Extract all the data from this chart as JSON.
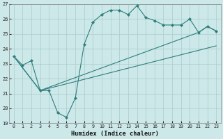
{
  "xlabel": "Humidex (Indice chaleur)",
  "background_color": "#cce8e8",
  "grid_color": "#aacccc",
  "line_color": "#2e7d7d",
  "xlim": [
    -0.5,
    23.5
  ],
  "ylim": [
    19,
    27
  ],
  "xticks": [
    0,
    1,
    2,
    3,
    4,
    5,
    6,
    7,
    8,
    9,
    10,
    11,
    12,
    13,
    14,
    15,
    16,
    17,
    18,
    19,
    20,
    21,
    22,
    23
  ],
  "yticks": [
    19,
    20,
    21,
    22,
    23,
    24,
    25,
    26,
    27
  ],
  "line1_x": [
    0,
    1,
    2,
    3,
    4,
    5,
    6,
    7,
    8,
    9,
    10,
    11,
    12,
    13,
    14,
    15,
    16,
    17,
    18,
    19,
    20,
    21,
    22,
    23
  ],
  "line1_y": [
    23.5,
    22.9,
    23.2,
    21.2,
    21.2,
    19.7,
    19.4,
    20.7,
    24.3,
    25.8,
    26.3,
    26.6,
    26.6,
    26.3,
    26.9,
    26.1,
    25.9,
    25.6,
    25.6,
    25.6,
    26.0,
    25.1,
    25.5,
    25.2
  ],
  "line2_x": [
    0,
    3,
    23
  ],
  "line2_y": [
    23.5,
    21.2,
    24.2
  ],
  "line3_x": [
    0,
    3,
    21,
    22,
    23
  ],
  "line3_y": [
    23.5,
    21.2,
    25.1,
    25.5,
    25.2
  ]
}
